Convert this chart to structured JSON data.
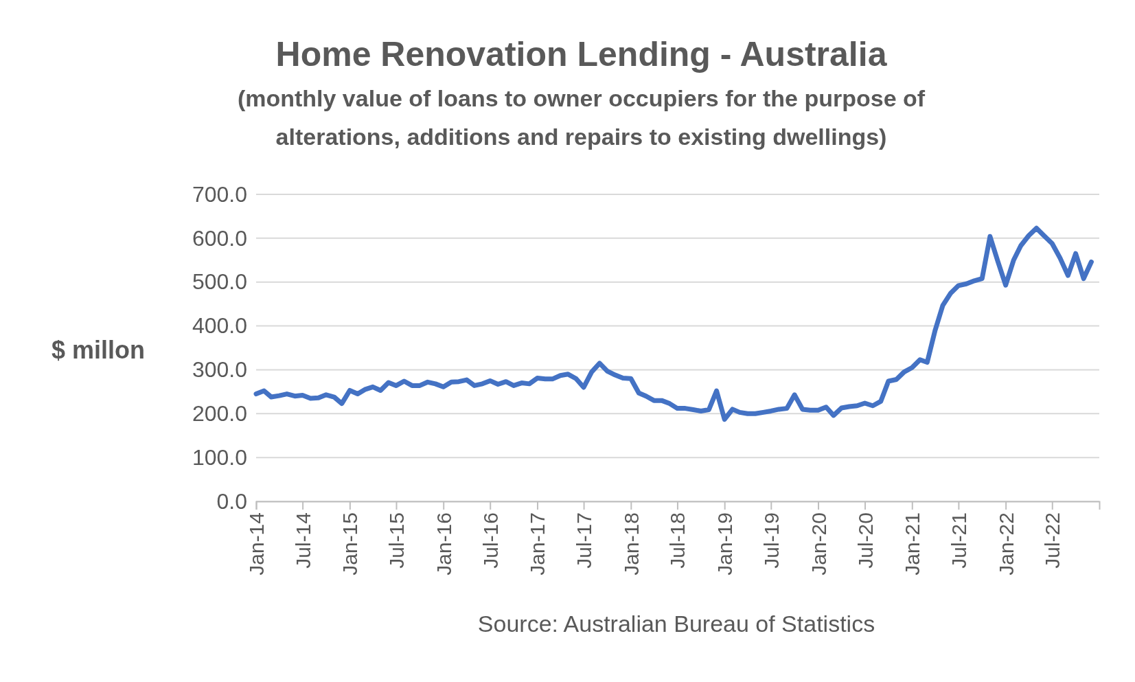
{
  "chart_data": {
    "type": "line",
    "title": "Home Renovation Lending - Australia",
    "subtitle": "(monthly value of loans to owner occupiers for the purpose of alterations, additions and repairs to existing dwellings)",
    "ylabel": "$ millon",
    "annotations": [
      "Source: Australian Bureau of Statistics"
    ],
    "x": [
      "2014-01",
      "2014-02",
      "2014-03",
      "2014-04",
      "2014-05",
      "2014-06",
      "2014-07",
      "2014-08",
      "2014-09",
      "2014-10",
      "2014-11",
      "2014-12",
      "2015-01",
      "2015-02",
      "2015-03",
      "2015-04",
      "2015-05",
      "2015-06",
      "2015-07",
      "2015-08",
      "2015-09",
      "2015-10",
      "2015-11",
      "2015-12",
      "2016-01",
      "2016-02",
      "2016-03",
      "2016-04",
      "2016-05",
      "2016-06",
      "2016-07",
      "2016-08",
      "2016-09",
      "2016-10",
      "2016-11",
      "2016-12",
      "2017-01",
      "2017-02",
      "2017-03",
      "2017-04",
      "2017-05",
      "2017-06",
      "2017-07",
      "2017-08",
      "2017-09",
      "2017-10",
      "2017-11",
      "2017-12",
      "2018-01",
      "2018-02",
      "2018-03",
      "2018-04",
      "2018-05",
      "2018-06",
      "2018-07",
      "2018-08",
      "2018-09",
      "2018-10",
      "2018-11",
      "2018-12",
      "2019-01",
      "2019-02",
      "2019-03",
      "2019-04",
      "2019-05",
      "2019-06",
      "2019-07",
      "2019-08",
      "2019-09",
      "2019-10",
      "2019-11",
      "2019-12",
      "2020-01",
      "2020-02",
      "2020-03",
      "2020-04",
      "2020-05",
      "2020-06",
      "2020-07",
      "2020-08",
      "2020-09",
      "2020-10",
      "2020-11",
      "2020-12",
      "2021-01",
      "2021-02",
      "2021-03",
      "2021-04",
      "2021-05",
      "2021-06",
      "2021-07",
      "2021-08",
      "2021-09",
      "2021-10",
      "2021-11",
      "2021-12",
      "2022-01",
      "2022-02",
      "2022-03",
      "2022-04",
      "2022-05",
      "2022-06",
      "2022-07",
      "2022-08",
      "2022-09",
      "2022-10",
      "2022-11",
      "2022-12"
    ],
    "series": [
      {
        "color": "#4472c4",
        "values": [
          245,
          252,
          238,
          241,
          245,
          240,
          242,
          235,
          236,
          243,
          238,
          223,
          253,
          245,
          255,
          261,
          253,
          271,
          264,
          274,
          264,
          264,
          272,
          268,
          261,
          272,
          273,
          277,
          264,
          268,
          275,
          267,
          273,
          264,
          270,
          268,
          281,
          279,
          279,
          287,
          290,
          280,
          260,
          295,
          315,
          297,
          288,
          281,
          280,
          247,
          240,
          230,
          230,
          223,
          212,
          212,
          209,
          206,
          209,
          252,
          187,
          210,
          203,
          200,
          200,
          203,
          206,
          210,
          212,
          243,
          210,
          208,
          208,
          215,
          196,
          213,
          216,
          218,
          224,
          218,
          228,
          274,
          278,
          295,
          305,
          323,
          317,
          390,
          447,
          475,
          492,
          496,
          503,
          508,
          604,
          548,
          493,
          550,
          583,
          606,
          623,
          605,
          588,
          555,
          515,
          565,
          508,
          546
        ]
      }
    ],
    "xlim": [
      "2014-01",
      "2023-01"
    ],
    "xticks": [
      {
        "value": "2014-01",
        "label": "Jan-14"
      },
      {
        "value": "2014-07",
        "label": "Jul-14"
      },
      {
        "value": "2015-01",
        "label": "Jan-15"
      },
      {
        "value": "2015-07",
        "label": "Jul-15"
      },
      {
        "value": "2016-01",
        "label": "Jan-16"
      },
      {
        "value": "2016-07",
        "label": "Jul-16"
      },
      {
        "value": "2017-01",
        "label": "Jan-17"
      },
      {
        "value": "2017-07",
        "label": "Jul-17"
      },
      {
        "value": "2018-01",
        "label": "Jan-18"
      },
      {
        "value": "2018-07",
        "label": "Jul-18"
      },
      {
        "value": "2019-01",
        "label": "Jan-19"
      },
      {
        "value": "2019-07",
        "label": "Jul-19"
      },
      {
        "value": "2020-01",
        "label": "Jan-20"
      },
      {
        "value": "2020-07",
        "label": "Jul-20"
      },
      {
        "value": "2021-01",
        "label": "Jan-21"
      },
      {
        "value": "2021-07",
        "label": "Jul-21"
      },
      {
        "value": "2022-01",
        "label": "Jan-22"
      },
      {
        "value": "2022-07",
        "label": "Jul-22"
      }
    ],
    "ylim": [
      0,
      700
    ],
    "yticks": [
      {
        "value": 0,
        "label": "0.0"
      },
      {
        "value": 100,
        "label": "100.0"
      },
      {
        "value": 200,
        "label": "200.0"
      },
      {
        "value": 300,
        "label": "300.0"
      },
      {
        "value": 400,
        "label": "400.0"
      },
      {
        "value": 500,
        "label": "500.0"
      },
      {
        "value": 600,
        "label": "600.0"
      },
      {
        "value": 700,
        "label": "700.0"
      }
    ],
    "grid": "y",
    "marker": "none",
    "line_style": "solid"
  }
}
